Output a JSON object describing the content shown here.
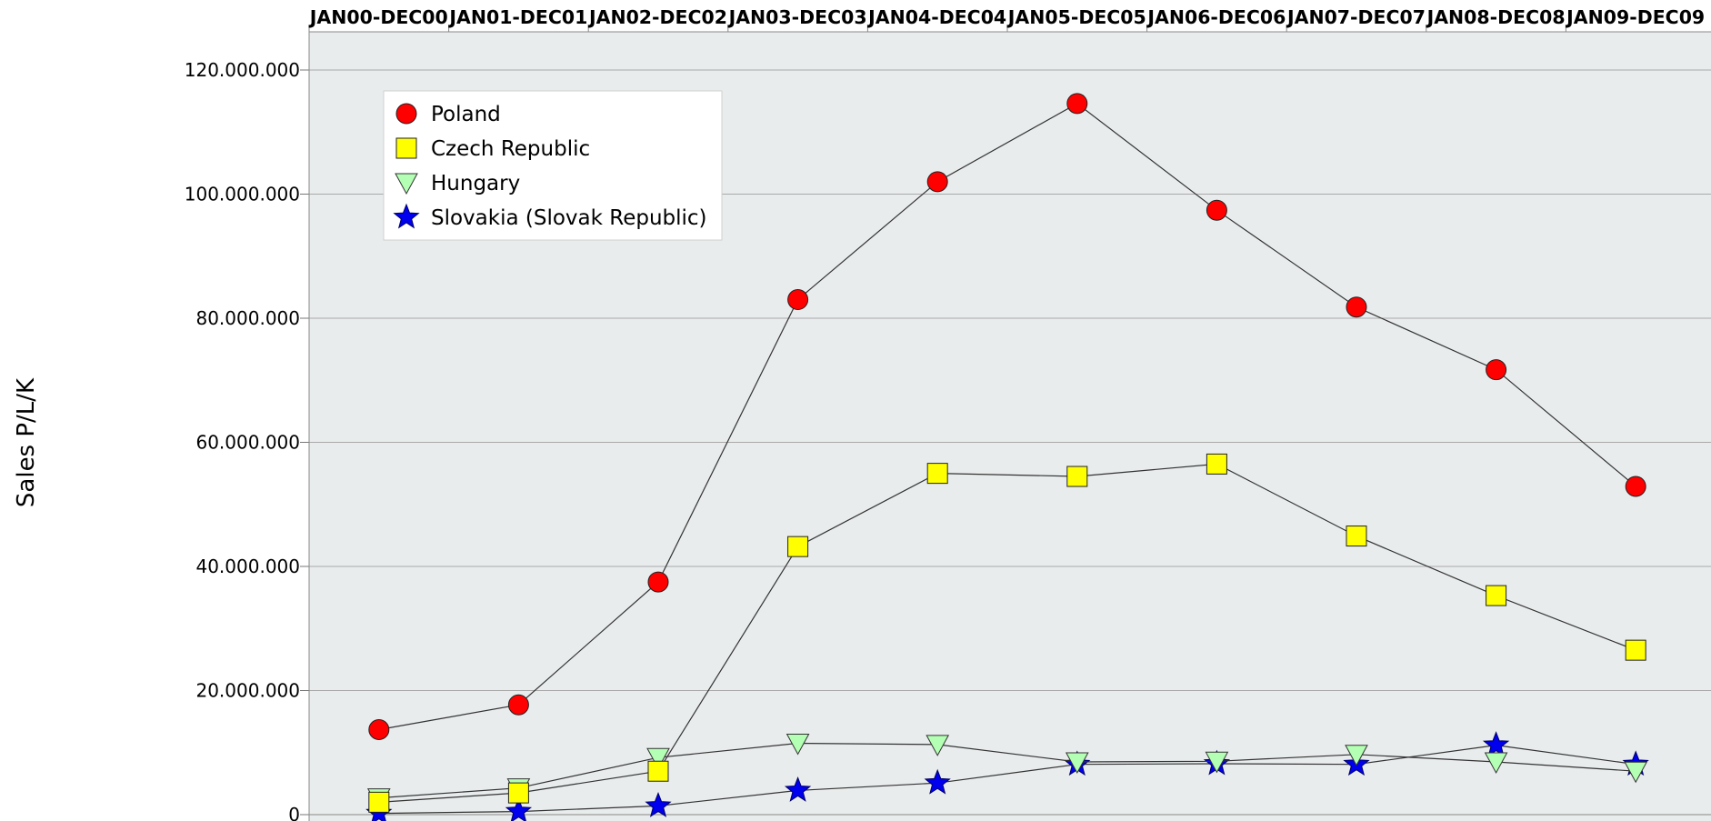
{
  "chart_data": {
    "type": "line",
    "ylabel": "Sales P/L/K",
    "ylim": [
      0,
      120000000
    ],
    "y_ticks": [
      0,
      20000000,
      40000000,
      60000000,
      80000000,
      100000000,
      120000000
    ],
    "y_tick_labels": [
      "0",
      "20.000.000",
      "40.000.000",
      "60.000.000",
      "80.000.000",
      "100.000.000",
      "120.000.000"
    ],
    "categories": [
      "JAN00-DEC00",
      "JAN01-DEC01",
      "JAN02-DEC02",
      "JAN03-DEC03",
      "JAN04-DEC04",
      "JAN05-DEC05",
      "JAN06-DEC06",
      "JAN07-DEC07",
      "JAN08-DEC08",
      "JAN09-DEC09"
    ],
    "category_axis_position": "top",
    "grid": true,
    "legend_position": "top-left",
    "series": [
      {
        "name": "Poland",
        "marker": "circle",
        "color": "#ff0000",
        "values": [
          13700000,
          17700000,
          37500000,
          83000000,
          102000000,
          114600000,
          97400000,
          81800000,
          71700000,
          52900000
        ]
      },
      {
        "name": "Czech Republic",
        "marker": "square",
        "color": "#ffff00",
        "values": [
          2000000,
          3500000,
          7000000,
          43200000,
          55000000,
          54500000,
          56500000,
          44900000,
          35300000,
          26500000
        ]
      },
      {
        "name": "Hungary",
        "marker": "triangle-down",
        "color": "#b3ffb3",
        "values": [
          2700000,
          4300000,
          9200000,
          11500000,
          11300000,
          8500000,
          8600000,
          9700000,
          8500000,
          7000000
        ]
      },
      {
        "name": "Slovakia (Slovak Republic)",
        "marker": "star",
        "color": "#0000ee",
        "values": [
          200000,
          500000,
          1400000,
          3900000,
          5100000,
          8100000,
          8200000,
          8100000,
          11200000,
          8100000
        ]
      }
    ]
  }
}
